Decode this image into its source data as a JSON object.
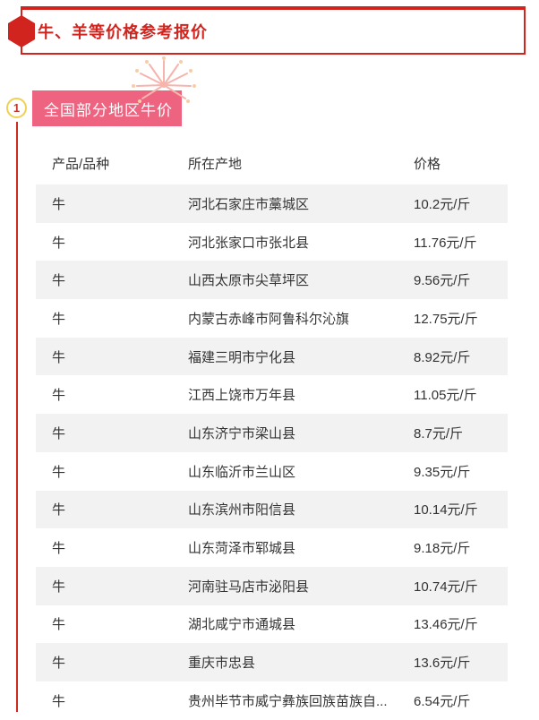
{
  "header": {
    "title": "牛、羊等价格参考报价"
  },
  "section": {
    "index": "1",
    "badge": "全国部分地区牛价"
  },
  "table": {
    "columns": [
      "产品/品种",
      "所在产地",
      "价格"
    ],
    "rows": [
      {
        "product": "牛",
        "origin": "河北石家庄市藁城区",
        "price": "10.2元/斤"
      },
      {
        "product": "牛",
        "origin": "河北张家口市张北县",
        "price": "11.76元/斤"
      },
      {
        "product": "牛",
        "origin": "山西太原市尖草坪区",
        "price": "9.56元/斤"
      },
      {
        "product": "牛",
        "origin": "内蒙古赤峰市阿鲁科尔沁旗",
        "price": "12.75元/斤"
      },
      {
        "product": "牛",
        "origin": "福建三明市宁化县",
        "price": "8.92元/斤"
      },
      {
        "product": "牛",
        "origin": "江西上饶市万年县",
        "price": "11.05元/斤"
      },
      {
        "product": "牛",
        "origin": "山东济宁市梁山县",
        "price": "8.7元/斤"
      },
      {
        "product": "牛",
        "origin": "山东临沂市兰山区",
        "price": "9.35元/斤"
      },
      {
        "product": "牛",
        "origin": "山东滨州市阳信县",
        "price": "10.14元/斤"
      },
      {
        "product": "牛",
        "origin": "山东菏泽市郓城县",
        "price": "9.18元/斤"
      },
      {
        "product": "牛",
        "origin": "河南驻马店市泌阳县",
        "price": "10.74元/斤"
      },
      {
        "product": "牛",
        "origin": "湖北咸宁市通城县",
        "price": "13.46元/斤"
      },
      {
        "product": "牛",
        "origin": "重庆市忠县",
        "price": "13.6元/斤"
      },
      {
        "product": "牛",
        "origin": "贵州毕节市威宁彝族回族苗族自...",
        "price": "6.54元/斤"
      }
    ]
  },
  "colors": {
    "accent_red": "#d2241e",
    "timeline_red": "#cc2a1f",
    "badge_pink": "#ee6480",
    "circle_ring_yellow": "#f0cf57",
    "row_stripe_gray": "#f2f2f2",
    "text": "#333333",
    "firework_pink": "#f6b4ad"
  }
}
